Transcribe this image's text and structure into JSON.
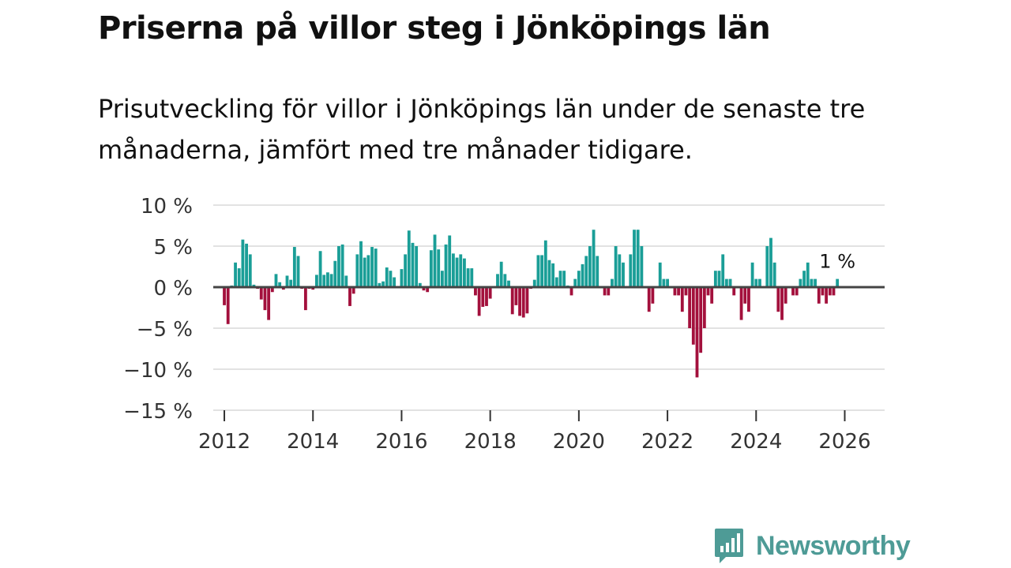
{
  "title": "Priserna på villor steg i Jönköpings län",
  "subtitle": "Prisutveckling för villor i Jönköpings län under de senaste tre månaderna, jämfört med tre månader tidigare.",
  "brand": {
    "name": "Newsworthy",
    "icon": "newsworthy-logo-icon"
  },
  "colors": {
    "positive": "#1a9e97",
    "negative": "#a3103c",
    "grid": "#d9d9d9",
    "zero": "#444444",
    "brand": "#4e9b96"
  },
  "chart_data": {
    "type": "bar",
    "title": "Priserna på villor steg i Jönköpings län",
    "xlabel": "",
    "ylabel": "",
    "ylim": [
      -15,
      10
    ],
    "yticks": [
      10,
      5,
      0,
      -5,
      -10,
      -15
    ],
    "ytick_labels": [
      "10 %",
      "5 %",
      "0 %",
      "−5 %",
      "−10 %",
      "−15 %"
    ],
    "xlim": [
      2011.75,
      2026.9
    ],
    "xticks": [
      2012,
      2014,
      2016,
      2018,
      2020,
      2022,
      2024,
      2026
    ],
    "xtick_labels": [
      "2012",
      "2014",
      "2016",
      "2018",
      "2020",
      "2022",
      "2024",
      "2026"
    ],
    "grid": true,
    "start_year": 2012,
    "start_month": 1,
    "annotation": {
      "label": "1 %",
      "value": 1
    },
    "values": [
      -2.2,
      -4.5,
      0.2,
      3.0,
      2.3,
      5.8,
      5.3,
      4.0,
      0.3,
      -0.2,
      -1.5,
      -2.8,
      -4.0,
      -0.6,
      1.6,
      0.6,
      -0.3,
      1.4,
      0.9,
      4.9,
      3.8,
      -0.2,
      -2.8,
      -0.2,
      -0.3,
      1.5,
      4.4,
      1.5,
      1.8,
      1.6,
      3.2,
      5.0,
      5.2,
      1.4,
      -2.3,
      -0.8,
      4.0,
      5.6,
      3.6,
      3.9,
      4.9,
      4.7,
      0.5,
      0.7,
      2.4,
      2.0,
      1.2,
      -0.1,
      2.2,
      4.0,
      6.9,
      5.4,
      5.0,
      0.5,
      -0.4,
      -0.6,
      4.5,
      6.4,
      4.6,
      2.0,
      5.2,
      6.3,
      4.1,
      3.6,
      4.0,
      3.5,
      2.3,
      2.3,
      -1.0,
      -3.5,
      -2.4,
      -2.3,
      -1.4,
      0.1,
      1.6,
      3.1,
      1.6,
      0.8,
      -3.3,
      -2.2,
      -3.5,
      -3.7,
      -3.2,
      -0.2,
      0.9,
      3.9,
      3.9,
      5.7,
      3.3,
      2.9,
      1.2,
      2.0,
      2.0,
      0.2,
      -1.0,
      1.0,
      2.0,
      2.8,
      3.8,
      5.0,
      7.0,
      3.8,
      -0.1,
      -1.0,
      -1.0,
      1.0,
      5.0,
      4.0,
      3.0,
      0.1,
      4.0,
      7.0,
      7.0,
      5.0,
      0.1,
      -3.0,
      -2.0,
      0.1,
      3.0,
      1.0,
      1.0,
      -0.1,
      -1.0,
      -1.0,
      -3.0,
      -1.0,
      -5.0,
      -7.0,
      -11.0,
      -8.0,
      -5.0,
      -1.0,
      -2.0,
      2.0,
      2.0,
      4.0,
      1.0,
      1.0,
      -1.0,
      0.1,
      -4.0,
      -2.0,
      -3.0,
      3.0,
      1.0,
      1.0,
      0.1,
      5.0,
      6.0,
      3.0,
      -3.0,
      -4.0,
      -2.0,
      0.1,
      -1.0,
      -1.0,
      1.0,
      2.0,
      3.0,
      1.0,
      1.0,
      -2.0,
      -1.0,
      -2.0,
      -1.0,
      -1.0,
      1.0
    ]
  }
}
